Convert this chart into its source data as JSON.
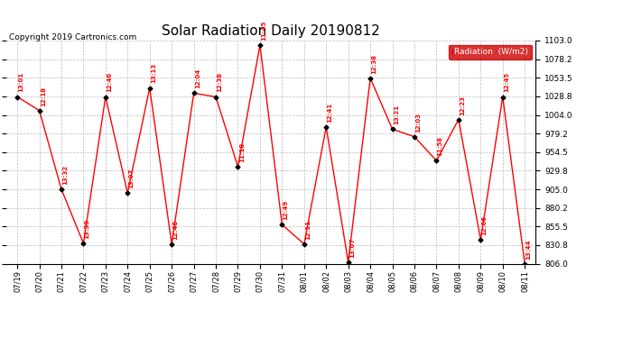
{
  "title": "Solar Radiation Daily 20190812",
  "copyright": "Copyright 2019 Cartronics.com",
  "legend_label": "Radiation  (W/m2)",
  "ylim": [
    806.0,
    1103.0
  ],
  "yticks": [
    806.0,
    830.8,
    855.5,
    880.2,
    905.0,
    929.8,
    954.5,
    979.2,
    1004.0,
    1028.8,
    1053.5,
    1078.2,
    1103.0
  ],
  "dates": [
    "07/19",
    "07/20",
    "07/21",
    "07/22",
    "07/23",
    "07/24",
    "07/25",
    "07/26",
    "07/27",
    "07/28",
    "07/29",
    "07/30",
    "07/31",
    "08/01",
    "08/02",
    "08/03",
    "08/04",
    "08/05",
    "08/06",
    "08/07",
    "08/08",
    "08/09",
    "08/10",
    "08/11"
  ],
  "values": [
    1028,
    1010,
    905,
    833,
    1028,
    900,
    1040,
    832,
    1033,
    1028,
    935,
    1097,
    858,
    832,
    988,
    808,
    1053,
    985,
    975,
    943,
    998,
    838,
    1028,
    806
  ],
  "labels": [
    "13:01",
    "12:18",
    "13:32",
    "13:39",
    "12:46",
    "13:07",
    "13:13",
    "12:48",
    "12:04",
    "12:38",
    "11:18",
    "11:45",
    "12:49",
    "12:11",
    "12:41",
    "13:07",
    "12:38",
    "13:21",
    "12:03",
    "11:58",
    "12:23",
    "12:06",
    "12:45",
    "13:44"
  ],
  "line_color": "#ff0000",
  "marker_color": "black",
  "label_color": "#ff0000",
  "grid_color": "#bbbbbb",
  "bg_color": "#ffffff",
  "title_fontsize": 11,
  "copyright_fontsize": 6.5,
  "legend_bg": "#cc0000",
  "legend_fg": "#ffffff"
}
